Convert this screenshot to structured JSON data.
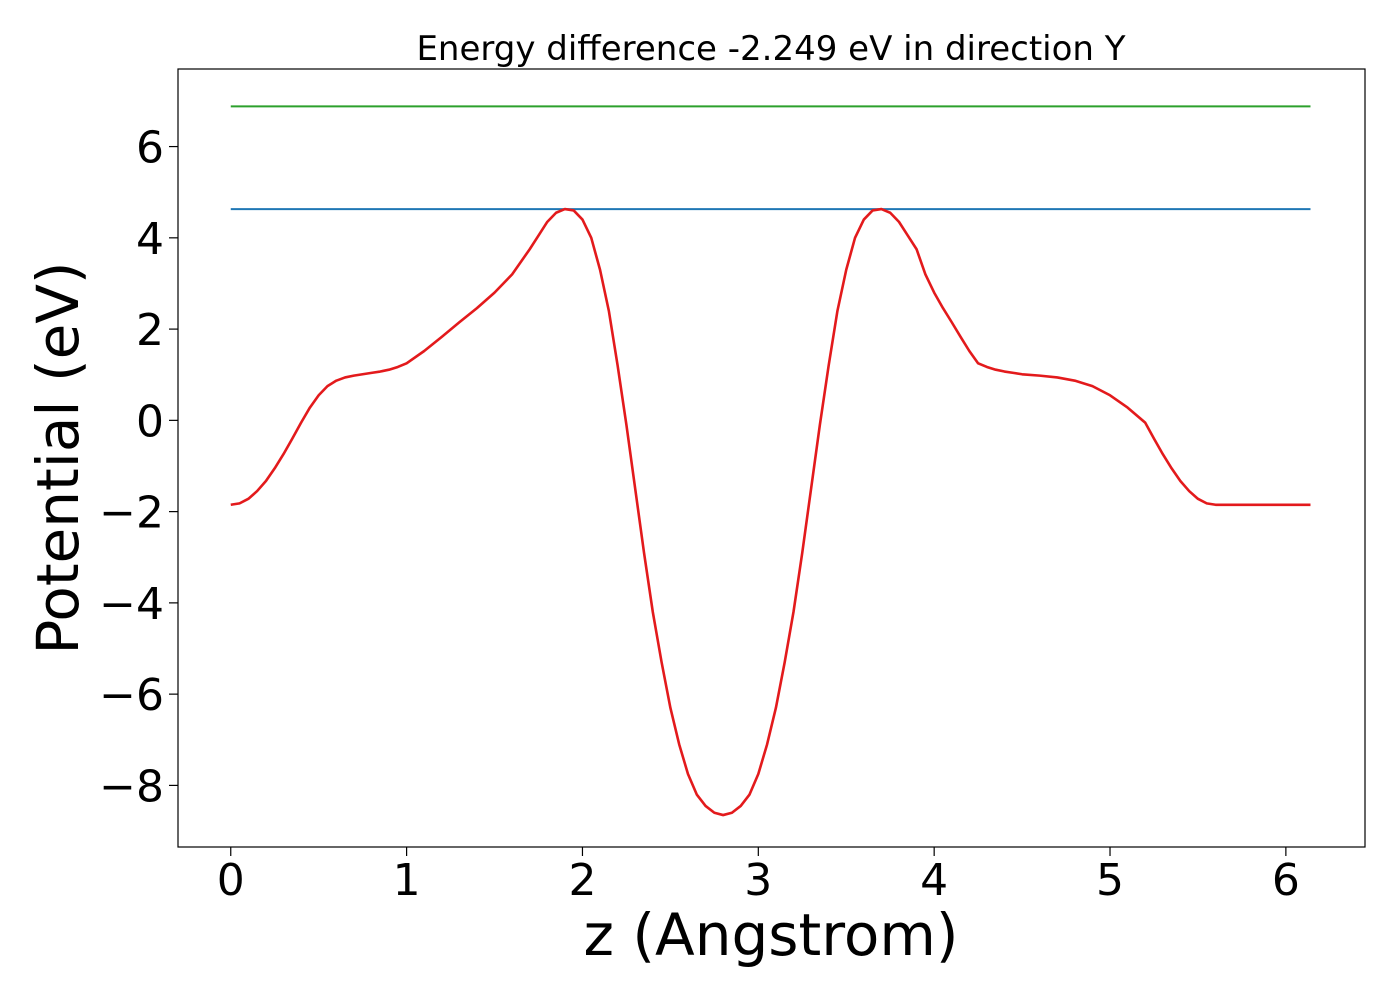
{
  "chart_data": {
    "type": "line",
    "title": "Energy difference -2.249 eV in direction Y",
    "xlabel": "z (Angstrom)",
    "ylabel": "Potential (eV)",
    "xlim": [
      -0.3,
      6.45
    ],
    "ylim": [
      -9.35,
      7.7
    ],
    "x_ticks": [
      0,
      1,
      2,
      3,
      4,
      5,
      6
    ],
    "x_tick_labels": [
      "0",
      "1",
      "2",
      "3",
      "4",
      "5",
      "6"
    ],
    "y_ticks": [
      -8,
      -6,
      -4,
      -2,
      0,
      2,
      4,
      6
    ],
    "y_tick_labels": [
      "−8",
      "−6",
      "−4",
      "−2",
      "0",
      "2",
      "4",
      "6"
    ],
    "grid": false,
    "series": [
      {
        "color": "#2ca02c",
        "x": [
          0,
          6.14
        ],
        "y": [
          6.88,
          6.88
        ]
      },
      {
        "color": "#1f77b4",
        "x": [
          0,
          6.14
        ],
        "y": [
          4.63,
          4.63
        ]
      },
      {
        "color": "#e31a1c",
        "x": [
          0.0,
          0.05,
          0.1,
          0.15,
          0.2,
          0.25,
          0.3,
          0.35,
          0.4,
          0.45,
          0.5,
          0.55,
          0.6,
          0.65,
          0.7,
          0.75,
          0.8,
          0.85,
          0.9,
          0.95,
          1.0,
          1.1,
          1.2,
          1.3,
          1.4,
          1.5,
          1.6,
          1.7,
          1.75,
          1.8,
          1.85,
          1.9,
          1.95,
          2.0,
          2.05,
          2.1,
          2.15,
          2.2,
          2.25,
          2.3,
          2.35,
          2.4,
          2.45,
          2.5,
          2.55,
          2.6,
          2.65,
          2.7,
          2.75,
          2.8,
          2.85,
          2.9,
          2.95,
          3.0,
          3.05,
          3.1,
          3.15,
          3.2,
          3.25,
          3.3,
          3.35,
          3.4,
          3.45,
          3.5,
          3.55,
          3.6,
          3.65,
          3.7,
          3.75,
          3.8,
          3.85,
          3.9,
          3.95,
          4.0,
          4.05,
          4.1,
          4.15,
          4.2,
          4.25,
          4.3,
          4.35,
          4.4,
          4.45,
          4.5,
          4.6,
          4.7,
          4.8,
          4.9,
          5.0,
          5.1,
          5.2,
          5.25,
          5.3,
          5.35,
          5.4,
          5.45,
          5.5,
          5.55,
          5.6,
          5.65,
          5.7,
          5.75,
          5.8,
          5.85,
          5.9,
          5.95,
          6.0,
          6.05,
          6.1,
          6.14
        ],
        "y": [
          -1.85,
          -1.82,
          -1.72,
          -1.55,
          -1.33,
          -1.05,
          -0.74,
          -0.4,
          -0.05,
          0.28,
          0.55,
          0.75,
          0.87,
          0.94,
          0.98,
          1.01,
          1.04,
          1.07,
          1.11,
          1.17,
          1.25,
          1.52,
          1.83,
          2.15,
          2.46,
          2.8,
          3.2,
          3.75,
          4.05,
          4.35,
          4.55,
          4.63,
          4.6,
          4.4,
          4.0,
          3.3,
          2.4,
          1.2,
          -0.1,
          -1.5,
          -2.9,
          -4.2,
          -5.3,
          -6.3,
          -7.1,
          -7.75,
          -8.2,
          -8.45,
          -8.6,
          -8.65,
          -8.6,
          -8.45,
          -8.2,
          -7.75,
          -7.1,
          -6.3,
          -5.3,
          -4.2,
          -2.9,
          -1.5,
          -0.1,
          1.2,
          2.4,
          3.3,
          4.0,
          4.4,
          4.6,
          4.63,
          4.55,
          4.35,
          4.05,
          3.75,
          3.2,
          2.8,
          2.46,
          2.15,
          1.83,
          1.52,
          1.25,
          1.17,
          1.11,
          1.07,
          1.04,
          1.01,
          0.98,
          0.94,
          0.87,
          0.75,
          0.55,
          0.28,
          -0.05,
          -0.4,
          -0.74,
          -1.05,
          -1.33,
          -1.55,
          -1.72,
          -1.82,
          -1.85,
          -1.85,
          -1.85,
          -1.85,
          -1.85,
          -1.85,
          -1.85,
          -1.85,
          -1.85,
          -1.85,
          -1.85,
          -1.85
        ]
      }
    ]
  }
}
